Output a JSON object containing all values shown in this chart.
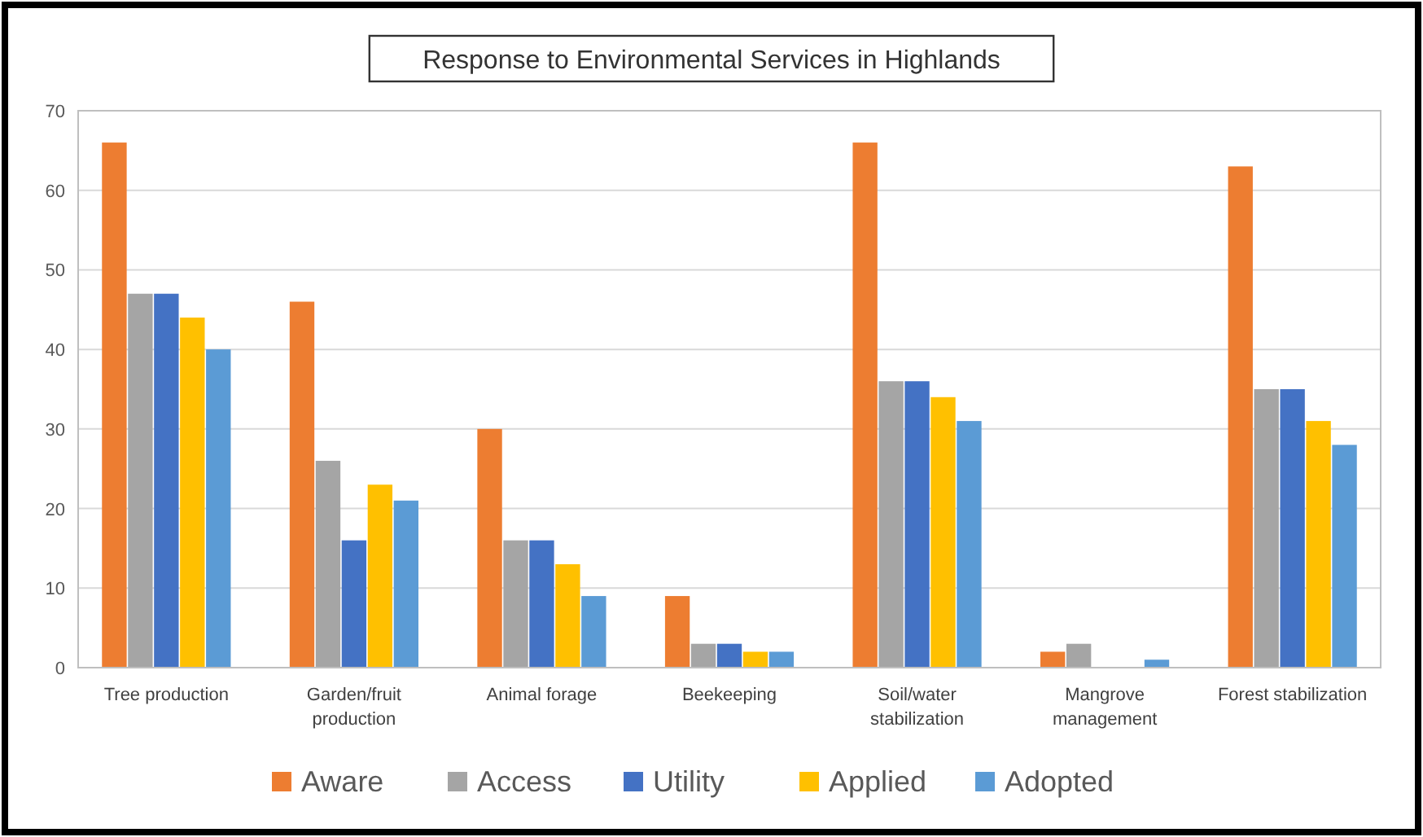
{
  "chart_data": {
    "type": "bar",
    "title": "Response to Environmental Services in Highlands",
    "categories": [
      "Tree production",
      "Garden/fruit\nproduction",
      "Animal forage",
      "Beekeeping",
      "Soil/water\nstabilization",
      "Mangrove\nmanagement",
      "Forest stabilization"
    ],
    "series": [
      {
        "name": "Aware",
        "color": "#ed7d31",
        "values": [
          66,
          46,
          30,
          9,
          66,
          2,
          63
        ]
      },
      {
        "name": "Access",
        "color": "#a5a5a5",
        "values": [
          47,
          26,
          16,
          3,
          36,
          3,
          35
        ]
      },
      {
        "name": "Utility",
        "color": "#4472c4",
        "values": [
          47,
          16,
          16,
          3,
          36,
          0,
          35
        ]
      },
      {
        "name": "Applied",
        "color": "#ffc000",
        "values": [
          44,
          23,
          13,
          2,
          34,
          0,
          31
        ]
      },
      {
        "name": "Adopted",
        "color": "#5b9bd5",
        "values": [
          40,
          21,
          9,
          2,
          31,
          1,
          28
        ]
      }
    ],
    "ylim": [
      0,
      70
    ],
    "yticks": [
      0,
      10,
      20,
      30,
      40,
      50,
      60,
      70
    ],
    "grid": "y",
    "legend": "bottom"
  }
}
